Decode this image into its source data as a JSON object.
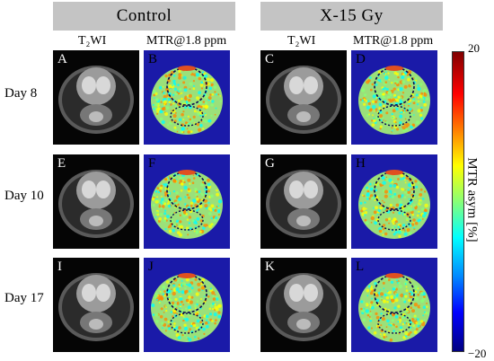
{
  "groups": [
    {
      "title": "Control"
    },
    {
      "title": "X-15 Gy"
    }
  ],
  "columns": {
    "t2": "T₂WI",
    "mtr": "MTR@1.8 ppm"
  },
  "rows": [
    {
      "label": "Day 8"
    },
    {
      "label": "Day 10"
    },
    {
      "label": "Day 17"
    }
  ],
  "panels": {
    "A": "A",
    "B": "B",
    "C": "C",
    "D": "D",
    "E": "E",
    "F": "F",
    "G": "G",
    "H": "H",
    "I": "I",
    "J": "J",
    "K": "K",
    "L": "L"
  },
  "colorbar": {
    "title": "MTR asym [%]",
    "max": "20",
    "min": "−20",
    "colors": [
      "#800000",
      "#ff0000",
      "#ff8800",
      "#ffff00",
      "#88ff77",
      "#00ffff",
      "#0088ff",
      "#0000ff",
      "#000080"
    ]
  }
}
